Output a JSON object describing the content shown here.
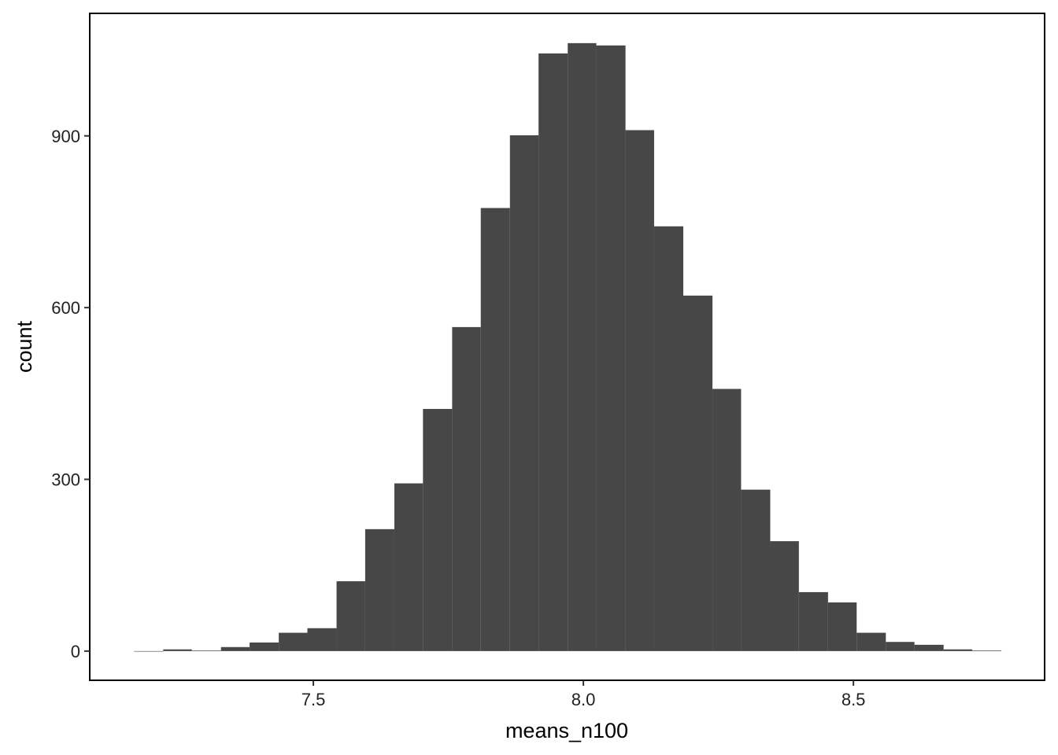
{
  "chart_data": {
    "type": "histogram",
    "x_label": "means_n100",
    "y_label": "count",
    "bins": [
      7.168,
      7.222,
      7.275,
      7.329,
      7.382,
      7.436,
      7.489,
      7.543,
      7.596,
      7.65,
      7.703,
      7.757,
      7.81,
      7.864,
      7.917,
      7.971,
      8.024,
      8.078,
      8.131,
      8.185,
      8.239,
      8.292,
      8.346,
      8.399,
      8.453,
      8.506,
      8.56,
      8.613,
      8.667,
      8.72,
      8.774
    ],
    "counts": [
      0,
      3,
      1,
      7,
      15,
      32,
      40,
      122,
      213,
      293,
      423,
      566,
      774,
      901,
      1044,
      1062,
      1058,
      910,
      742,
      621,
      458,
      282,
      192,
      103,
      85,
      32,
      16,
      11,
      3,
      1
    ],
    "color": "#474747",
    "xlim": [
      7.086,
      8.854
    ],
    "ylim": [
      -51,
      1114
    ],
    "xticks": [
      7.5,
      {
        "value": 8,
        "label": "8.0"
      },
      8.5
    ],
    "yticks": [
      0,
      300,
      600,
      900
    ]
  }
}
